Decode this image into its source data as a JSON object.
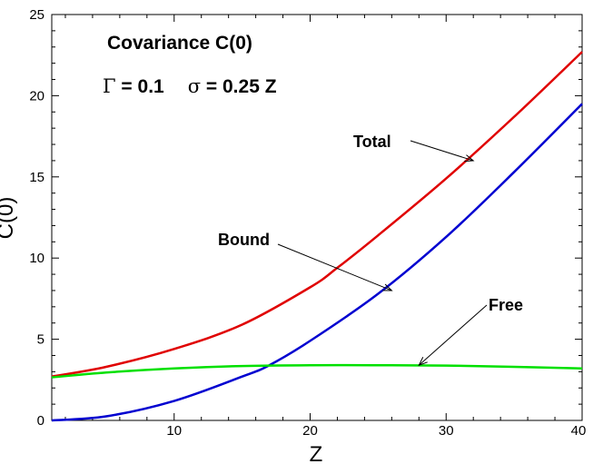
{
  "chart_data": {
    "type": "line",
    "title": "Covariance C(0)",
    "subtitle_parts": {
      "gamma_symbol": "Γ",
      "gamma_value": " = 0.1",
      "sigma_symbol": "σ",
      "sigma_value": " = 0.25 Z"
    },
    "xlabel": "Z",
    "ylabel": "C(0)",
    "xlim": [
      1,
      40
    ],
    "ylim": [
      0,
      25
    ],
    "xticks": [
      10,
      20,
      30,
      40
    ],
    "yticks": [
      0,
      5,
      10,
      15,
      20,
      25
    ],
    "grid": false,
    "series": [
      {
        "name": "Total",
        "color": "#e00000",
        "x": [
          1,
          5,
          10,
          15,
          20,
          22,
          25,
          30,
          35,
          40
        ],
        "y": [
          2.7,
          3.3,
          4.4,
          5.9,
          8.2,
          9.4,
          11.4,
          14.9,
          18.7,
          22.7
        ]
      },
      {
        "name": "Bound",
        "color": "#0000d0",
        "x": [
          1,
          5,
          10,
          15,
          17,
          20,
          25,
          30,
          35,
          40
        ],
        "y": [
          0,
          0.25,
          1.2,
          2.7,
          3.4,
          4.9,
          7.8,
          11.3,
          15.3,
          19.5
        ]
      },
      {
        "name": "Free",
        "color": "#00e000",
        "x": [
          1,
          5,
          10,
          15,
          20,
          25,
          30,
          35,
          40
        ],
        "y": [
          2.65,
          2.95,
          3.2,
          3.35,
          3.4,
          3.4,
          3.38,
          3.3,
          3.2
        ]
      }
    ],
    "annotations": [
      {
        "text": "Total",
        "arrow_to": [
          32,
          16
        ]
      },
      {
        "text": "Bound",
        "arrow_to": [
          26,
          8
        ]
      },
      {
        "text": "Free",
        "arrow_to": [
          28,
          3.4
        ]
      }
    ]
  }
}
